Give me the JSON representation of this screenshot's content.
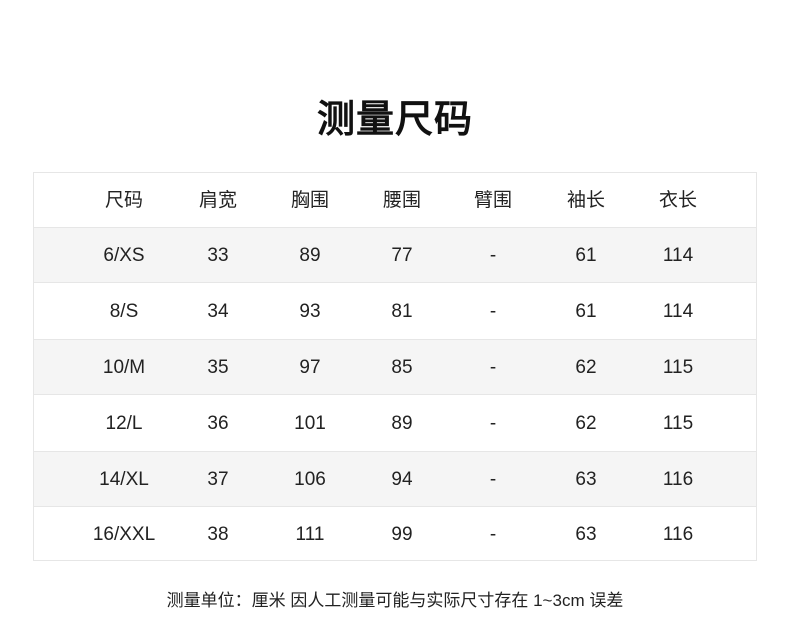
{
  "title": "测量尺码",
  "table": {
    "headers": [
      "尺码",
      "肩宽",
      "胸围",
      "腰围",
      "臂围",
      "袖长",
      "衣长"
    ],
    "rows": [
      [
        "6/XS",
        "33",
        "89",
        "77",
        "-",
        "61",
        "114"
      ],
      [
        "8/S",
        "34",
        "93",
        "81",
        "-",
        "61",
        "114"
      ],
      [
        "10/M",
        "35",
        "97",
        "85",
        "-",
        "62",
        "115"
      ],
      [
        "12/L",
        "36",
        "101",
        "89",
        "-",
        "62",
        "115"
      ],
      [
        "14/XL",
        "37",
        "106",
        "94",
        "-",
        "63",
        "116"
      ],
      [
        "16/XXL",
        "38",
        "111",
        "99",
        "-",
        "63",
        "116"
      ]
    ]
  },
  "note": "测量单位：厘米 因人工测量可能与实际尺寸存在 1~3cm 误差",
  "colors": {
    "row_alt": "#f5f5f5",
    "border": "#e6e6e6",
    "text": "#222222"
  }
}
